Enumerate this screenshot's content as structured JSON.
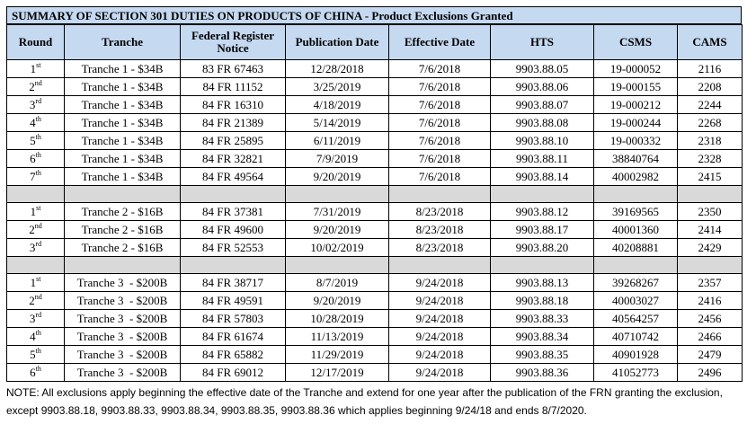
{
  "title": {
    "main": "SUMMARY OF SECTION 301 DUTIES ON PRODUCTS OF CHINA",
    "sep": " - ",
    "sub": "Product Exclusions Granted"
  },
  "headers": [
    "Round",
    "Tranche",
    "Federal Register Notice",
    "Publication Date",
    "Effective Date",
    "HTS",
    "CSMS",
    "CAMS"
  ],
  "groups": [
    {
      "rows": [
        {
          "n": "1",
          "s": "st",
          "tranche": "Tranche 1 - $34B",
          "frn": "83 FR 67463",
          "pub": "12/28/2018",
          "eff": "7/6/2018",
          "hts": "9903.88.05",
          "csms": "19-000052",
          "cams": "2116"
        },
        {
          "n": "2",
          "s": "nd",
          "tranche": "Tranche 1 - $34B",
          "frn": "84 FR 11152",
          "pub": "3/25/2019",
          "eff": "7/6/2018",
          "hts": "9903.88.06",
          "csms": "19-000155",
          "cams": "2208"
        },
        {
          "n": "3",
          "s": "rd",
          "tranche": "Tranche 1 - $34B",
          "frn": "84 FR 16310",
          "pub": "4/18/2019",
          "eff": "7/6/2018",
          "hts": "9903.88.07",
          "csms": "19-000212",
          "cams": "2244"
        },
        {
          "n": "4",
          "s": "th",
          "tranche": "Tranche 1 - $34B",
          "frn": "84 FR 21389",
          "pub": "5/14/2019",
          "eff": "7/6/2018",
          "hts": "9903.88.08",
          "csms": "19-000244",
          "cams": "2268"
        },
        {
          "n": "5",
          "s": "th",
          "tranche": "Tranche 1 - $34B",
          "frn": "84 FR 25895",
          "pub": "6/11/2019",
          "eff": "7/6/2018",
          "hts": "9903.88.10",
          "csms": "19-000332",
          "cams": "2318"
        },
        {
          "n": "6",
          "s": "th",
          "tranche": "Tranche 1 - $34B",
          "frn": "84 FR 32821",
          "pub": "7/9/2019",
          "eff": "7/6/2018",
          "hts": "9903.88.11",
          "csms": "38840764",
          "cams": "2328"
        },
        {
          "n": "7",
          "s": "th",
          "tranche": "Tranche 1 - $34B",
          "frn": "84 FR 49564",
          "pub": "9/20/2019",
          "eff": "7/6/2018",
          "hts": "9903.88.14",
          "csms": "40002982",
          "cams": "2415"
        }
      ]
    },
    {
      "rows": [
        {
          "n": "1",
          "s": "st",
          "tranche": "Tranche 2 - $16B",
          "frn": "84 FR 37381",
          "pub": "7/31/2019",
          "eff": "8/23/2018",
          "hts": "9903.88.12",
          "csms": "39169565",
          "cams": "2350"
        },
        {
          "n": "2",
          "s": "nd",
          "tranche": "Tranche 2 - $16B",
          "frn": "84 FR 49600",
          "pub": "9/20/2019",
          "eff": "8/23/2018",
          "hts": "9903.88.17",
          "csms": "40001360",
          "cams": "2414"
        },
        {
          "n": "3",
          "s": "rd",
          "tranche": "Tranche 2 - $16B",
          "frn": "84 FR 52553",
          "pub": "10/02/2019",
          "eff": "8/23/2018",
          "hts": "9903.88.20",
          "csms": "40208881",
          "cams": "2429"
        }
      ]
    },
    {
      "rows": [
        {
          "n": "1",
          "s": "st",
          "tranche": "Tranche 3  - $200B",
          "frn": "84 FR 38717",
          "pub": "8/7/2019",
          "eff": "9/24/2018",
          "hts": "9903.88.13",
          "csms": "39268267",
          "cams": "2357"
        },
        {
          "n": "2",
          "s": "nd",
          "tranche": "Tranche 3  - $200B",
          "frn": "84 FR 49591",
          "pub": "9/20/2019",
          "eff": "9/24/2018",
          "hts": "9903.88.18",
          "csms": "40003027",
          "cams": "2416"
        },
        {
          "n": "3",
          "s": "rd",
          "tranche": "Tranche 3  - $200B",
          "frn": "84 FR 57803",
          "pub": "10/28/2019",
          "eff": "9/24/2018",
          "hts": "9903.88.33",
          "csms": "40564257",
          "cams": "2456"
        },
        {
          "n": "4",
          "s": "th",
          "tranche": "Tranche 3  - $200B",
          "frn": "84 FR 61674",
          "pub": "11/13/2019",
          "eff": "9/24/2018",
          "hts": "9903.88.34",
          "csms": "40710742",
          "cams": "2466"
        },
        {
          "n": "5",
          "s": "th",
          "tranche": "Tranche 3  - $200B",
          "frn": "84 FR 65882",
          "pub": "11/29/2019",
          "eff": "9/24/2018",
          "hts": "9903.88.35",
          "csms": "40901928",
          "cams": "2479"
        },
        {
          "n": "6",
          "s": "th",
          "tranche": "Tranche 3  - $200B",
          "frn": "84 FR 69012",
          "pub": "12/17/2019",
          "eff": "9/24/2018",
          "hts": "9903.88.36",
          "csms": "41052773",
          "cams": "2496"
        }
      ]
    }
  ],
  "note": "NOTE:  All exclusions apply beginning the effective date of the Tranche and extend for one year after the publication of the FRN granting the exclusion, except 9903.88.18, 9903.88.33, 9903.88.34, 9903.88.35, 9903.88.36 which applies beginning 9/24/18 and ends 8/7/2020.",
  "colors": {
    "header_bg": "#c5d9f1",
    "separator_bg": "#d9d9d9",
    "border": "#000000"
  }
}
